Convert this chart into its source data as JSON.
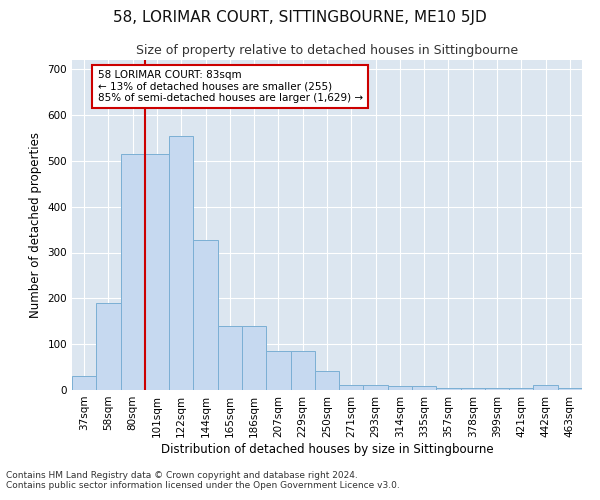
{
  "title": "58, LORIMAR COURT, SITTINGBOURNE, ME10 5JD",
  "subtitle": "Size of property relative to detached houses in Sittingbourne",
  "xlabel": "Distribution of detached houses by size in Sittingbourne",
  "ylabel": "Number of detached properties",
  "footnote1": "Contains HM Land Registry data © Crown copyright and database right 2024.",
  "footnote2": "Contains public sector information licensed under the Open Government Licence v3.0.",
  "bar_labels": [
    "37sqm",
    "58sqm",
    "80sqm",
    "101sqm",
    "122sqm",
    "144sqm",
    "165sqm",
    "186sqm",
    "207sqm",
    "229sqm",
    "250sqm",
    "271sqm",
    "293sqm",
    "314sqm",
    "335sqm",
    "357sqm",
    "378sqm",
    "399sqm",
    "421sqm",
    "442sqm",
    "463sqm"
  ],
  "bar_values": [
    30,
    190,
    515,
    515,
    555,
    328,
    140,
    140,
    85,
    85,
    42,
    12,
    12,
    8,
    8,
    5,
    5,
    5,
    5,
    10,
    5
  ],
  "bar_color": "#c6d9f0",
  "bar_edge_color": "#7bafd4",
  "annotation_box_text": "58 LORIMAR COURT: 83sqm\n← 13% of detached houses are smaller (255)\n85% of semi-detached houses are larger (1,629) →",
  "annotation_box_color": "#ffffff",
  "annotation_box_edge_color": "#cc0000",
  "red_line_x": 2.5,
  "ylim": [
    0,
    720
  ],
  "yticks": [
    0,
    100,
    200,
    300,
    400,
    500,
    600,
    700
  ],
  "bg_color": "#dce6f0",
  "fig_bg_color": "#ffffff",
  "grid_color": "#ffffff",
  "title_fontsize": 11,
  "subtitle_fontsize": 9,
  "axis_label_fontsize": 8.5,
  "tick_fontsize": 7.5,
  "annotation_fontsize": 7.5,
  "footnote_fontsize": 6.5
}
